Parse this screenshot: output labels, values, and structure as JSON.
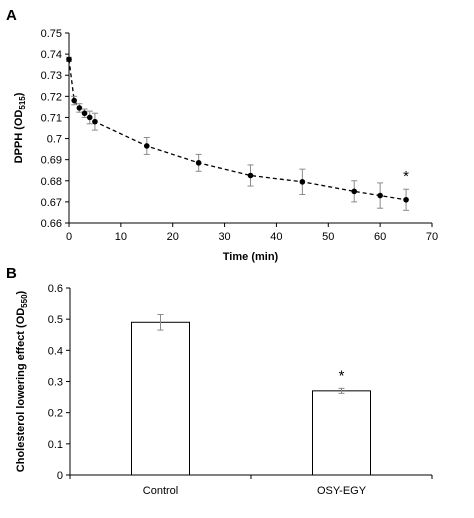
{
  "chart_data": [
    {
      "panel_label": "A",
      "type": "line",
      "xlabel": "Time (min)",
      "ylabel_main": "DPPH (OD",
      "ylabel_sub": "515",
      "ylabel_end": ")",
      "xlim": [
        0,
        70
      ],
      "ylim": [
        0.66,
        0.75
      ],
      "xticks": [
        0,
        10,
        20,
        30,
        40,
        50,
        60,
        70
      ],
      "xtick_labels": [
        "0",
        "10",
        "20",
        "30",
        "40",
        "50",
        "60",
        "70"
      ],
      "yticks": [
        0.66,
        0.67,
        0.68,
        0.69,
        0.7,
        0.71,
        0.72,
        0.73,
        0.74,
        0.75
      ],
      "ytick_labels": [
        "0.66",
        "0.67",
        "0.68",
        "0.69",
        "0.7",
        "0.71",
        "0.72",
        "0.73",
        "0.74",
        "0.75"
      ],
      "series": [
        {
          "x": [
            0,
            1,
            2,
            3,
            4,
            5,
            15,
            25,
            35,
            45,
            55,
            60,
            65
          ],
          "y": [
            0.7375,
            0.718,
            0.7145,
            0.712,
            0.71,
            0.708,
            0.6965,
            0.6885,
            0.6825,
            0.6795,
            0.675,
            0.673,
            0.671
          ],
          "err": [
            0.001,
            0.002,
            0.002,
            0.002,
            0.003,
            0.004,
            0.004,
            0.004,
            0.005,
            0.006,
            0.005,
            0.006,
            0.005
          ]
        }
      ],
      "annotation": {
        "text": "*",
        "x": 65
      }
    },
    {
      "panel_label": "B",
      "type": "bar",
      "ylabel_main": "Cholesterol lowering effect (OD",
      "ylabel_sub": "550",
      "ylabel_end": ")",
      "ylim": [
        0,
        0.6
      ],
      "yticks": [
        0,
        0.1,
        0.2,
        0.3,
        0.4,
        0.5,
        0.6
      ],
      "ytick_labels": [
        "0",
        "0.1",
        "0.2",
        "0.3",
        "0.4",
        "0.5",
        "0.6"
      ],
      "categories": [
        "Control",
        "OSY-EGY"
      ],
      "values": [
        0.49,
        0.27
      ],
      "err": [
        0.025,
        0.008
      ],
      "annotation": {
        "text": "*",
        "category_index": 1
      }
    }
  ]
}
